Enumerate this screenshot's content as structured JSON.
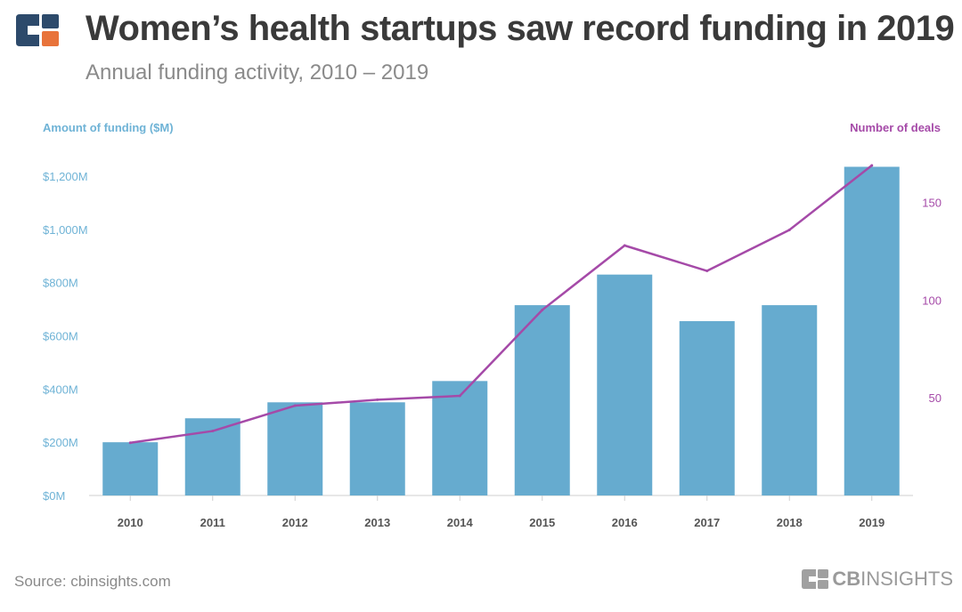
{
  "header": {
    "title": "Women’s health startups saw record funding in 2019",
    "subtitle": "Annual funding activity, 2010 – 2019"
  },
  "footer": {
    "source": "Source: cbinsights.com",
    "brand_bold": "CB",
    "brand_light": "INSIGHTS"
  },
  "colors": {
    "bars": "#66abcf",
    "line": "#a54aa8",
    "left_axis": "#6fb3d6",
    "right_axis": "#a54aa8",
    "logo_blue": "#2d4a6b",
    "logo_orange": "#e8733a"
  },
  "chart_data": {
    "type": "bar+line",
    "title": "Women’s health startups saw record funding in 2019",
    "categories": [
      "2010",
      "2011",
      "2012",
      "2013",
      "2014",
      "2015",
      "2016",
      "2017",
      "2018",
      "2019"
    ],
    "series": [
      {
        "name": "Amount of funding ($M)",
        "type": "bar",
        "axis": "left",
        "values": [
          200,
          290,
          350,
          350,
          430,
          715,
          830,
          655,
          715,
          1235
        ]
      },
      {
        "name": "Number of deals",
        "type": "line",
        "axis": "right",
        "values": [
          27,
          33,
          46,
          49,
          51,
          95,
          128,
          115,
          136,
          169
        ]
      }
    ],
    "y_left": {
      "label": "Amount of funding ($M)",
      "ticks": [
        0,
        200,
        400,
        600,
        800,
        1000,
        1200
      ],
      "tick_labels": [
        "$0M",
        "$200M",
        "$400M",
        "$600M",
        "$800M",
        "$1,000M",
        "$1,200M"
      ],
      "ylim": [
        0,
        1240
      ]
    },
    "y_right": {
      "label": "Number of deals",
      "ticks": [
        50,
        100,
        150
      ],
      "tick_labels": [
        "50",
        "100",
        "150"
      ],
      "ylim": [
        0,
        169
      ]
    },
    "grid": false,
    "legend": "none"
  }
}
